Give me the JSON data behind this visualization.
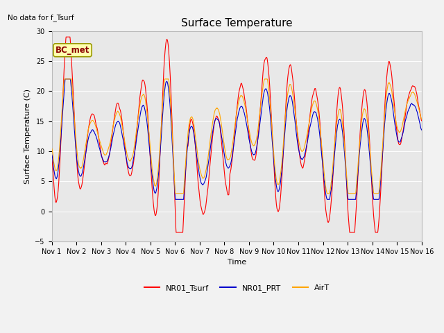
{
  "title": "Surface Temperature",
  "xlabel": "Time",
  "ylabel": "Surface Temperature (C)",
  "top_left_text": "No data for f_Tsurf",
  "annotation_box": "BC_met",
  "ylim": [
    -5,
    30
  ],
  "yticks": [
    -5,
    0,
    5,
    10,
    15,
    20,
    25,
    30
  ],
  "x_labels": [
    "Nov 1",
    "Nov 2",
    "Nov 3",
    "Nov 4",
    "Nov 5",
    "Nov 6",
    "Nov 7",
    "Nov 8",
    "Nov 9",
    "Nov 10",
    "Nov 11",
    "Nov 12",
    "Nov 13",
    "Nov 14",
    "Nov 15",
    "Nov 16"
  ],
  "colors": {
    "NR01_Tsurf": "#FF0000",
    "NR01_PRT": "#0000CC",
    "AirT": "#FFA500"
  },
  "legend_labels": [
    "NR01_Tsurf",
    "NR01_PRT",
    "AirT"
  ],
  "fig_bg_color": "#F2F2F2",
  "plot_bg": "#E8E8E8",
  "grid_color": "#FFFFFF",
  "line_width": 0.8,
  "title_fontsize": 11,
  "label_fontsize": 8,
  "tick_fontsize": 7,
  "legend_fontsize": 8,
  "figsize": [
    6.4,
    4.8
  ],
  "dpi": 100
}
